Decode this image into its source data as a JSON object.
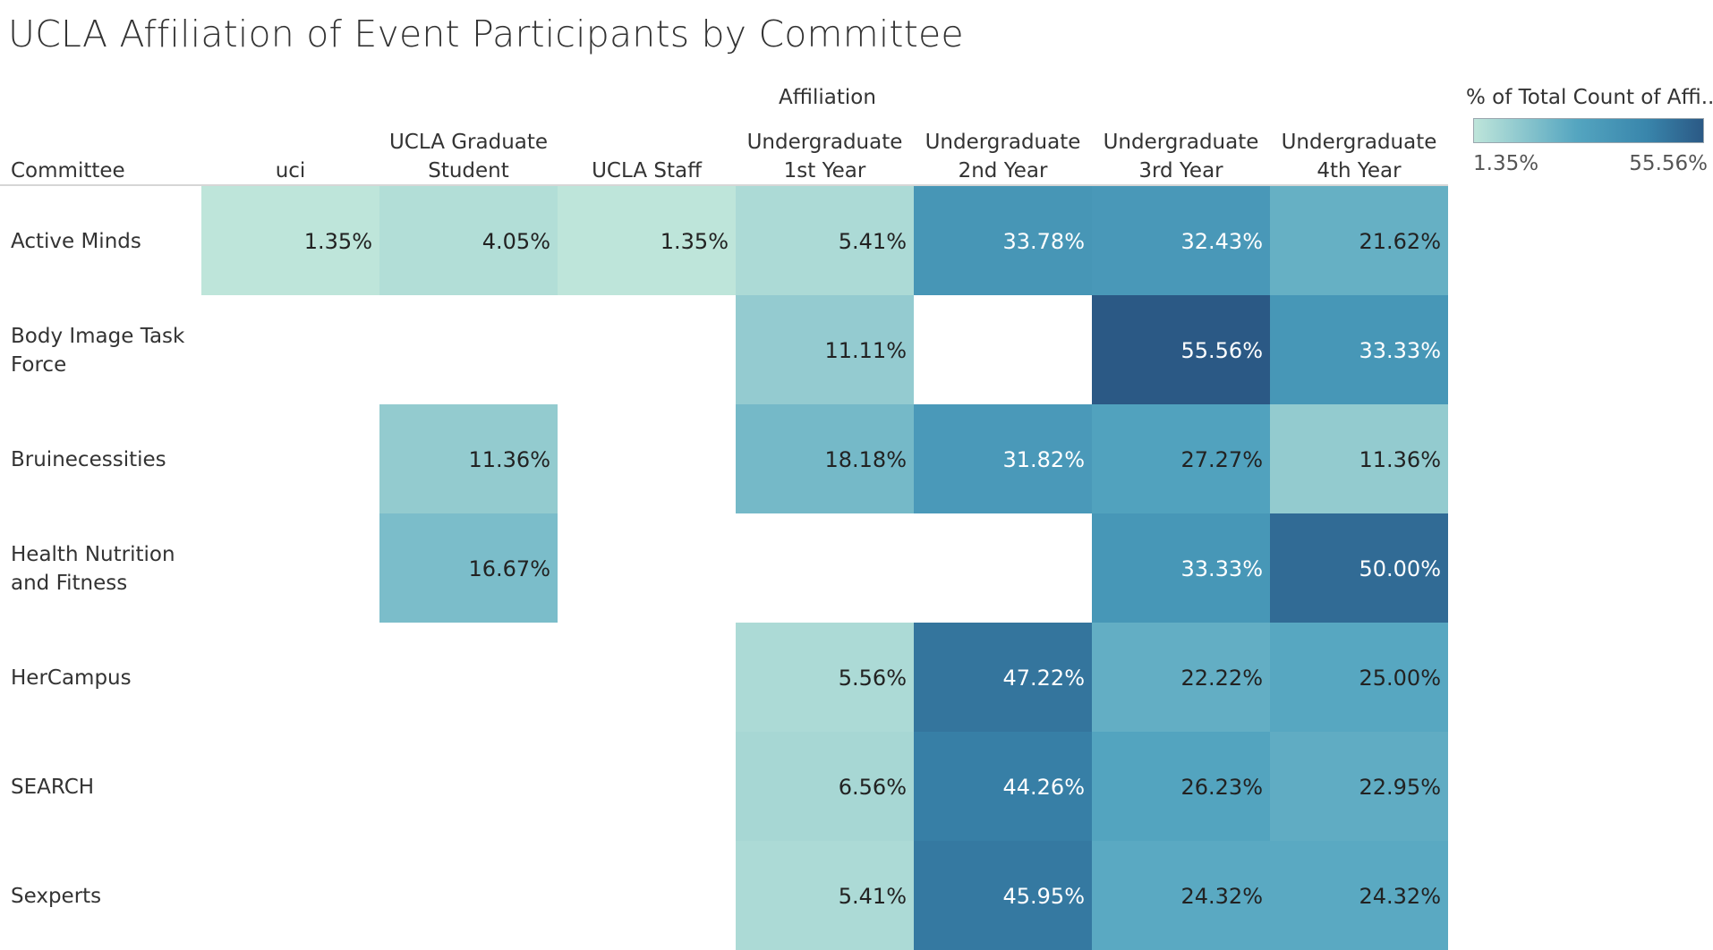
{
  "title": "UCLA Affiliation of Event Participants by Committee",
  "legend": {
    "title": "% of Total Count of Affi..",
    "min_label": "1.35%",
    "max_label": "55.56%",
    "color_low": "#bde4d9",
    "color_high": "#2b5985"
  },
  "chart_data": {
    "type": "heatmap",
    "title": "UCLA Affiliation of Event Participants by Committee",
    "column_group_label": "Affiliation",
    "row_header": "Committee",
    "columns": [
      "uci",
      "UCLA Graduate Student",
      "UCLA Staff",
      "Undergraduate 1st Year",
      "Undergraduate 2nd Year",
      "Undergraduate 3rd Year",
      "Undergraduate 4th Year"
    ],
    "column_lines": [
      [
        "uci"
      ],
      [
        "UCLA Graduate",
        "Student"
      ],
      [
        "UCLA Staff"
      ],
      [
        "Undergraduate",
        "1st Year"
      ],
      [
        "Undergraduate",
        "2nd Year"
      ],
      [
        "Undergraduate",
        "3rd Year"
      ],
      [
        "Undergraduate",
        "4th Year"
      ]
    ],
    "rows": [
      "Active Minds",
      "Body Image Task Force",
      "Bruinecessities",
      "Health Nutrition and Fitness",
      "HerCampus",
      "SEARCH",
      "Sexperts"
    ],
    "row_lines": [
      [
        "Active Minds"
      ],
      [
        "Body Image Task",
        "Force"
      ],
      [
        "Bruinecessities"
      ],
      [
        "Health Nutrition",
        "and Fitness"
      ],
      [
        "HerCampus"
      ],
      [
        "SEARCH"
      ],
      [
        "Sexperts"
      ]
    ],
    "values": [
      [
        1.35,
        4.05,
        1.35,
        5.41,
        33.78,
        32.43,
        21.62
      ],
      [
        null,
        null,
        null,
        11.11,
        null,
        55.56,
        33.33
      ],
      [
        null,
        11.36,
        null,
        18.18,
        31.82,
        27.27,
        11.36
      ],
      [
        null,
        16.67,
        null,
        null,
        null,
        33.33,
        50.0
      ],
      [
        null,
        null,
        null,
        5.56,
        47.22,
        22.22,
        25.0
      ],
      [
        null,
        null,
        null,
        6.56,
        44.26,
        26.23,
        22.95
      ],
      [
        null,
        null,
        null,
        5.41,
        45.95,
        24.32,
        24.32
      ]
    ],
    "value_labels": [
      [
        "1.35%",
        "4.05%",
        "1.35%",
        "5.41%",
        "33.78%",
        "32.43%",
        "21.62%"
      ],
      [
        "",
        "",
        "",
        "11.11%",
        "",
        "55.56%",
        "33.33%"
      ],
      [
        "",
        "11.36%",
        "",
        "18.18%",
        "31.82%",
        "27.27%",
        "11.36%"
      ],
      [
        "",
        "16.67%",
        "",
        "",
        "",
        "33.33%",
        "50.00%"
      ],
      [
        "",
        "",
        "",
        "5.56%",
        "47.22%",
        "22.22%",
        "25.00%"
      ],
      [
        "",
        "",
        "",
        "6.56%",
        "44.26%",
        "26.23%",
        "22.95%"
      ],
      [
        "",
        "",
        "",
        "5.41%",
        "45.95%",
        "24.32%",
        "24.32%"
      ]
    ],
    "color_range": [
      1.35,
      55.56
    ],
    "unit": "%"
  }
}
